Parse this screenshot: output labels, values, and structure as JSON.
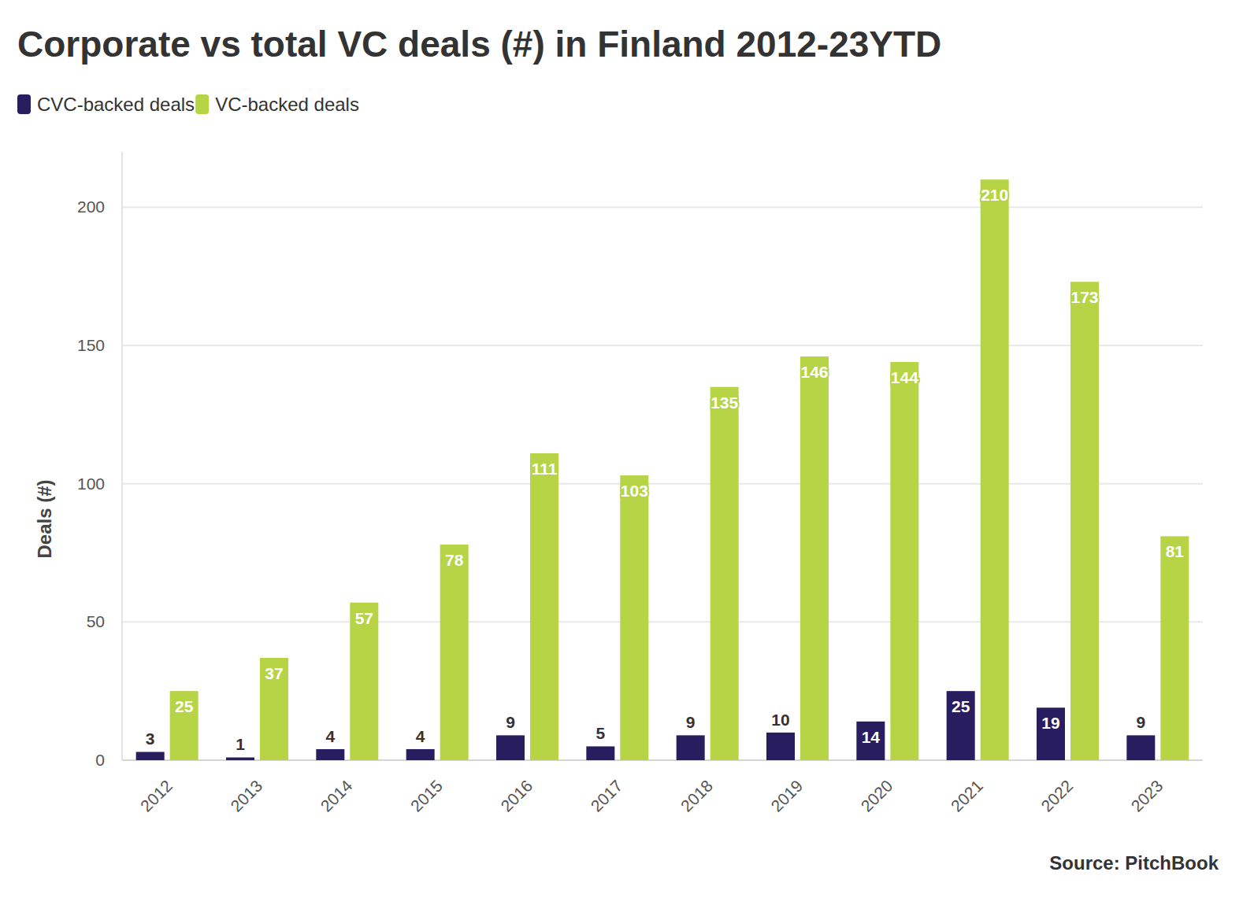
{
  "chart_data": {
    "type": "bar",
    "title": "Corporate vs total VC deals (#) in Finland 2012-23YTD",
    "y_label": "Deals (#)",
    "source": "Source: PitchBook",
    "categories": [
      "2012",
      "2013",
      "2014",
      "2015",
      "2016",
      "2017",
      "2018",
      "2019",
      "2020",
      "2021",
      "2022",
      "2023"
    ],
    "series": [
      {
        "name": "CVC-backed deals",
        "color": "#271d5f",
        "values": [
          3,
          1,
          4,
          4,
          9,
          5,
          9,
          10,
          14,
          25,
          19,
          9
        ]
      },
      {
        "name": "VC-backed deals",
        "color": "#b6d445",
        "values": [
          25,
          37,
          57,
          78,
          111,
          103,
          135,
          146,
          144,
          210,
          173,
          81
        ]
      }
    ],
    "ylim": [
      0,
      220
    ],
    "yticks": [
      0,
      50,
      100,
      150,
      200
    ],
    "grid": true,
    "legend": "top-left",
    "data_labels": true
  }
}
